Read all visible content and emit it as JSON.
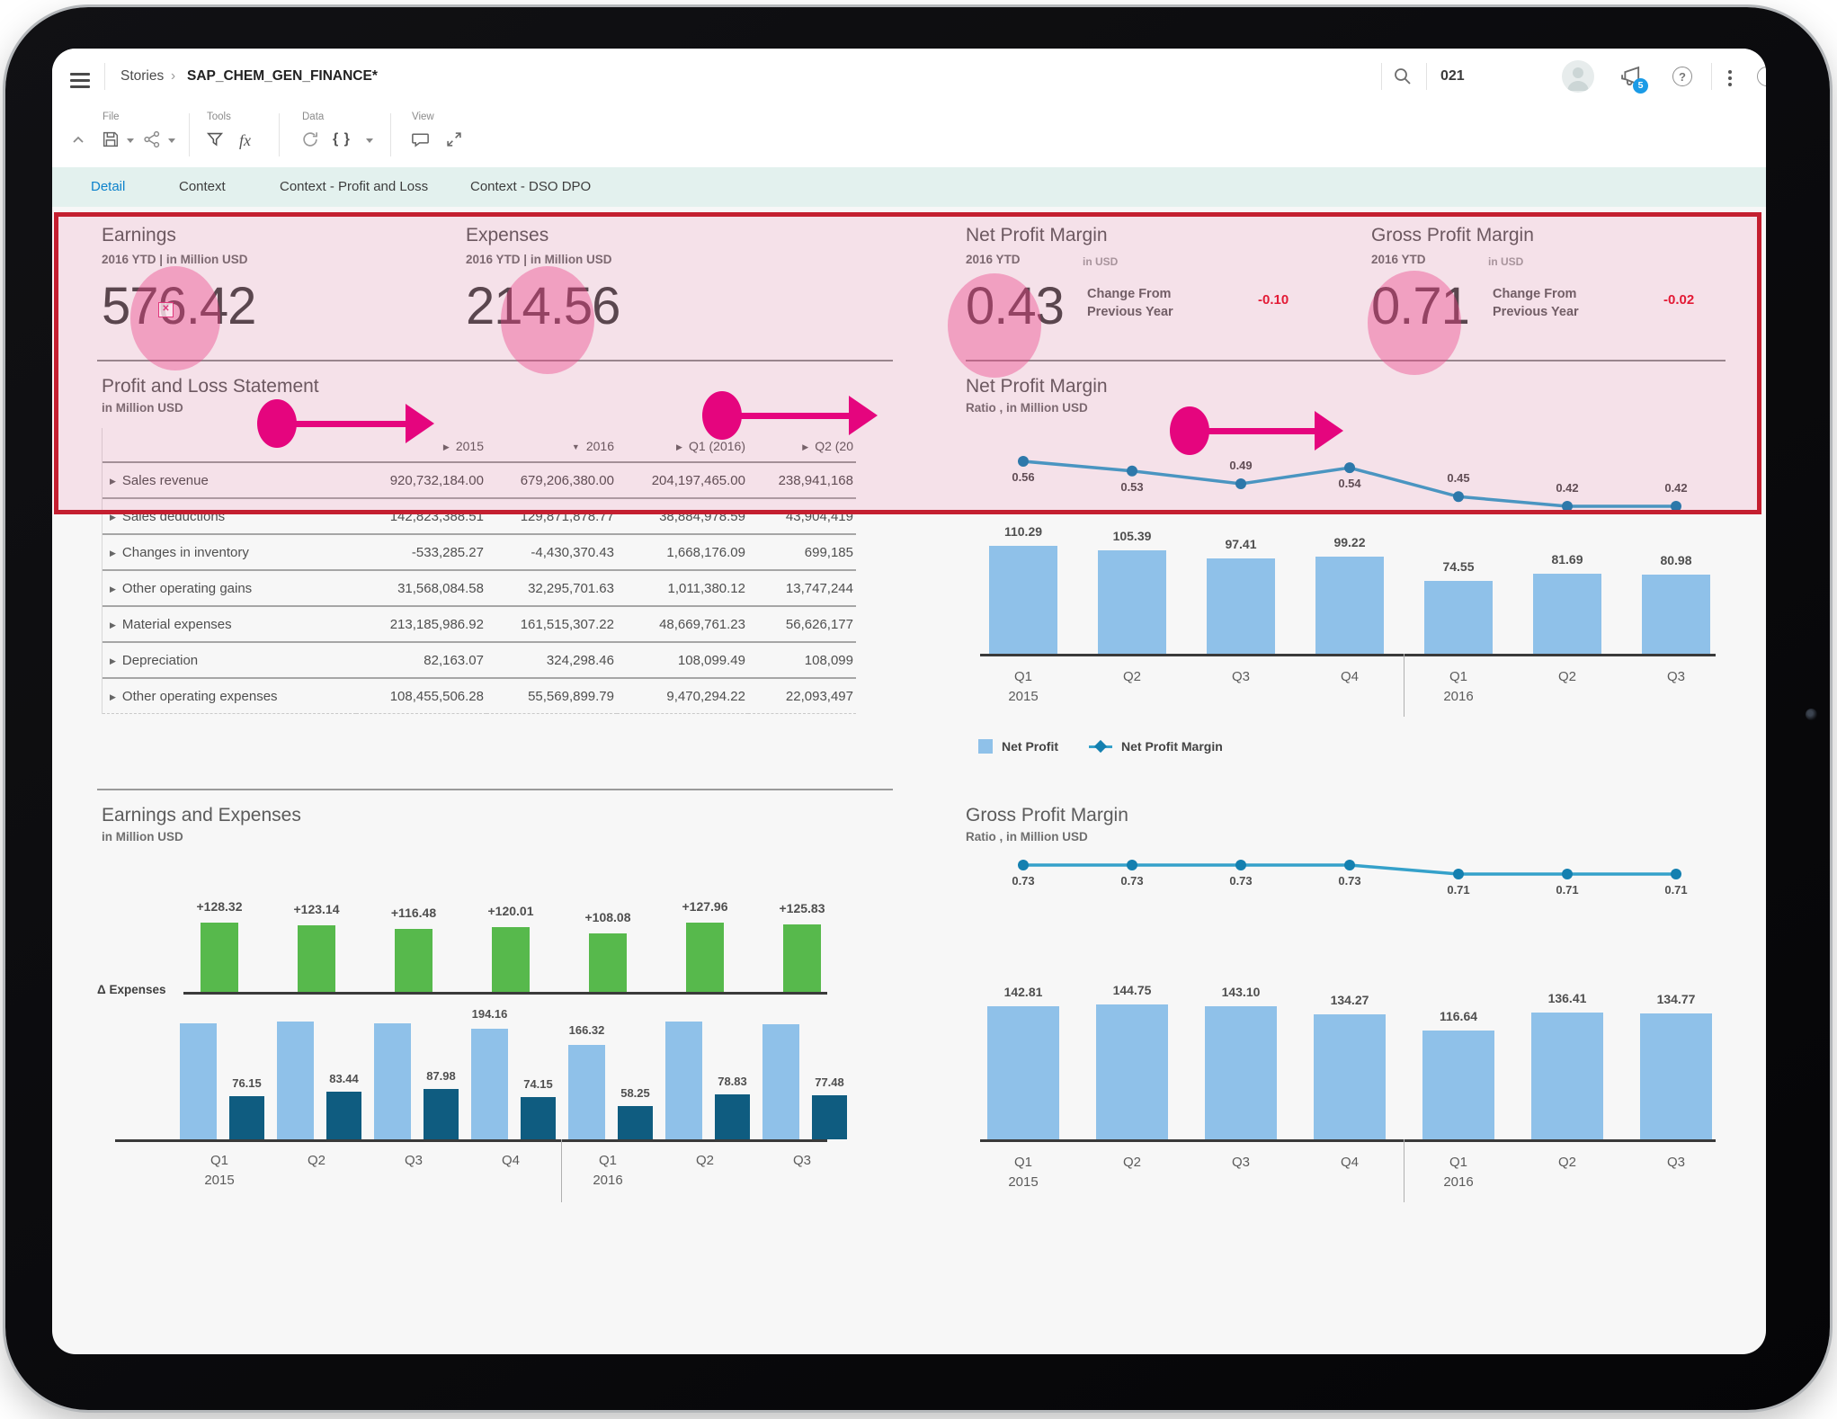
{
  "header": {
    "breadcrumb": "Stories",
    "breadcrumb_sep": "›",
    "title": "SAP_CHEM_GEN_FINANCE*",
    "search_text": "021",
    "notification_count": "5",
    "help_glyph": "?"
  },
  "toolbar": {
    "groups": [
      {
        "label": "File",
        "icons": [
          "save-icon",
          "share-icon"
        ]
      },
      {
        "label": "Tools",
        "icons": [
          "filter-icon",
          "formula-icon"
        ]
      },
      {
        "label": "Data",
        "icons": [
          "refresh-icon",
          "braces-icon"
        ]
      },
      {
        "label": "View",
        "icons": [
          "comment-icon",
          "fullscreen-icon"
        ]
      }
    ],
    "formula_text": "fx",
    "braces_text": "{ }"
  },
  "tabs": [
    {
      "label": "Detail",
      "active": true
    },
    {
      "label": "Context",
      "active": false
    },
    {
      "label": "Context - Profit and Loss",
      "active": false
    },
    {
      "label": "Context - DSO DPO",
      "active": false
    }
  ],
  "kpis": [
    {
      "title": "Earnings",
      "subtitle": "2016 YTD | in Million USD",
      "value": "576.42"
    },
    {
      "title": "Expenses",
      "subtitle": "2016 YTD | in Million USD",
      "value": "214.56"
    },
    {
      "title": "Net Profit Margin",
      "period": "2016 YTD",
      "unit": "in USD",
      "value": "0.43",
      "change_label_1": "Change From",
      "change_label_2": "Previous Year",
      "change_value": "-0.10"
    },
    {
      "title": "Gross Profit Margin",
      "period": "2016 YTD",
      "unit": "in USD",
      "value": "0.71",
      "change_label_1": "Change From",
      "change_label_2": "Previous Year",
      "change_value": "-0.02"
    }
  ],
  "pnl_table": {
    "title": "Profit and Loss Statement",
    "subtitle": "in Million USD",
    "columns": [
      {
        "arrow": "▶",
        "label": "2015"
      },
      {
        "arrow": "▼",
        "label": "2016"
      },
      {
        "arrow": "▶",
        "label": "Q1 (2016)"
      },
      {
        "arrow": "▶",
        "label": "Q2 (20"
      }
    ],
    "rows": [
      {
        "label": "Sales revenue",
        "values": [
          "920,732,184.00",
          "679,206,380.00",
          "204,197,465.00",
          "238,941,168"
        ]
      },
      {
        "label": "Sales deductions",
        "values": [
          "142,823,388.51",
          "129,871,878.77",
          "38,884,978.59",
          "43,904,419"
        ]
      },
      {
        "label": "Changes in inventory",
        "values": [
          "-533,285.27",
          "-4,430,370.43",
          "1,668,176.09",
          "699,185"
        ]
      },
      {
        "label": "Other operating gains",
        "values": [
          "31,568,084.58",
          "32,295,701.63",
          "1,011,380.12",
          "13,747,244"
        ]
      },
      {
        "label": "Material expenses",
        "values": [
          "213,185,986.92",
          "161,515,307.22",
          "48,669,761.23",
          "56,626,177"
        ]
      },
      {
        "label": "Depreciation",
        "values": [
          "82,163.07",
          "324,298.46",
          "108,099.49",
          "108,099"
        ]
      },
      {
        "label": "Other operating expenses",
        "values": [
          "108,455,506.28",
          "55,569,899.79",
          "9,470,294.22",
          "22,093,497"
        ]
      }
    ]
  },
  "chart_data": [
    {
      "id": "net_profit_margin",
      "type": "combo-bar-line",
      "title": "Net Profit Margin",
      "subtitle": "Ratio , in Million USD",
      "categories": [
        "Q1",
        "Q2",
        "Q3",
        "Q4",
        "Q1",
        "Q2",
        "Q3"
      ],
      "year_labels": [
        {
          "index": 0,
          "label": "2015"
        },
        {
          "index": 4,
          "label": "2016"
        }
      ],
      "series": [
        {
          "name": "Net Profit",
          "type": "bar",
          "values": [
            110.29,
            105.39,
            97.41,
            99.22,
            74.55,
            81.69,
            80.98
          ]
        },
        {
          "name": "Net Profit Margin",
          "type": "line",
          "values": [
            0.56,
            0.53,
            0.49,
            0.54,
            0.45,
            0.42,
            0.42
          ]
        }
      ],
      "legend": [
        "Net Profit",
        "Net Profit Margin"
      ],
      "legend_position": "bottom-left"
    },
    {
      "id": "earnings_and_expenses",
      "type": "grouped-bar",
      "title": "Earnings and Expenses",
      "subtitle": "in Million USD",
      "axis_label": "Δ Expenses",
      "categories": [
        "Q1",
        "Q2",
        "Q3",
        "Q4",
        "Q1",
        "Q2",
        "Q3"
      ],
      "year_labels": [
        {
          "index": 0,
          "label": "2015"
        },
        {
          "index": 4,
          "label": "2016"
        }
      ],
      "series": [
        {
          "name": "Delta",
          "type": "bar",
          "color_key": "bar_green",
          "values": [
            128.32,
            123.14,
            116.48,
            120.01,
            108.08,
            127.96,
            125.83
          ],
          "labels": [
            "+128.32",
            "+123.14",
            "+116.48",
            "+120.01",
            "+108.08",
            "+127.96",
            "+125.83"
          ]
        },
        {
          "name": "Earnings",
          "type": "bar",
          "color_key": "bar_blue",
          "values": [
            204.47,
            206.58,
            204.46,
            194.16,
            166.32,
            206.79,
            203.31
          ],
          "labels": [
            "",
            "",
            "",
            "194.16",
            "166.32",
            "",
            ""
          ]
        },
        {
          "name": "Expenses",
          "type": "bar",
          "color_key": "bar_dark_blue",
          "values": [
            76.15,
            83.44,
            87.98,
            74.15,
            58.25,
            78.83,
            77.48
          ],
          "labels": [
            "76.15",
            "83.44",
            "87.98",
            "74.15",
            "58.25",
            "78.83",
            "77.48"
          ]
        }
      ]
    },
    {
      "id": "gross_profit_margin",
      "type": "combo-bar-line",
      "title": "Gross Profit Margin",
      "subtitle": "Ratio , in Million USD",
      "categories": [
        "Q1",
        "Q2",
        "Q3",
        "Q4",
        "Q1",
        "Q2",
        "Q3"
      ],
      "year_labels": [
        {
          "index": 0,
          "label": "2015"
        },
        {
          "index": 4,
          "label": "2016"
        }
      ],
      "series": [
        {
          "name": "Gross Profit",
          "type": "bar",
          "values": [
            142.81,
            144.75,
            143.1,
            134.27,
            116.64,
            136.41,
            134.77
          ]
        },
        {
          "name": "Gross Profit Margin",
          "type": "line",
          "values": [
            0.73,
            0.73,
            0.73,
            0.73,
            0.71,
            0.71,
            0.71
          ]
        }
      ]
    }
  ],
  "colors": {
    "bar_blue": "#8FC1E9",
    "bar_dark_blue": "#0F5C80",
    "bar_green": "#57B94C",
    "line": "#35A1CA",
    "line_marker": "#1480B0",
    "negative": "#E3152B",
    "tab_active": "#0D82CC",
    "annotation_pink": "#E5057E",
    "highlight_border": "#C41F30"
  }
}
